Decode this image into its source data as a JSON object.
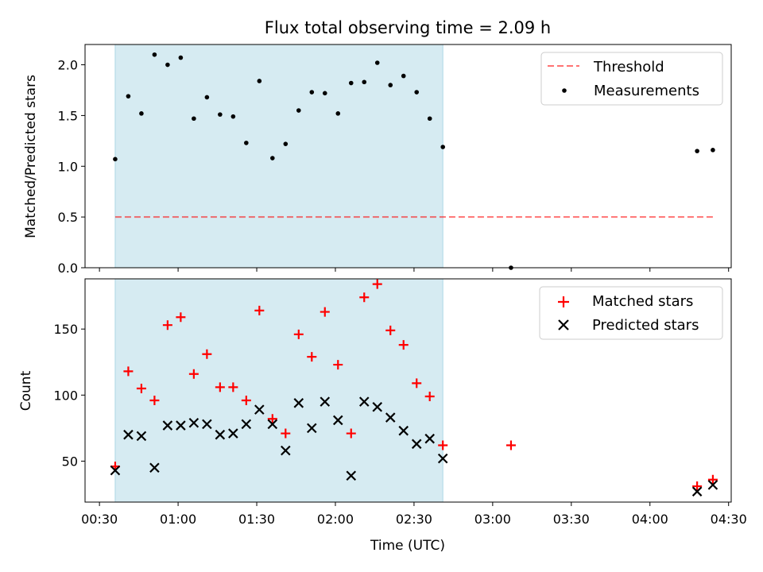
{
  "chart_data": [
    {
      "type": "scatter",
      "title": "Flux total observing time = 2.09 h",
      "ylabel": "Matched/Predicted stars",
      "xlabel": "",
      "ylim": [
        0,
        2.2
      ],
      "xlim": [
        24.5,
        271.0
      ],
      "yticks": [
        {
          "value": 0.0,
          "label": "0.0"
        },
        {
          "value": 0.5,
          "label": "0.5"
        },
        {
          "value": 1.0,
          "label": "1.0"
        },
        {
          "value": 1.5,
          "label": "1.5"
        },
        {
          "value": 2.0,
          "label": "2.0"
        }
      ],
      "shaded_region": {
        "x_start": 36,
        "x_end": 161,
        "color": "#add8e6"
      },
      "threshold": {
        "name": "Threshold",
        "value": 0.5,
        "x_start": 36,
        "x_end": 264,
        "color": "#ff0000"
      },
      "series": [
        {
          "name": "Measurements",
          "color": "#000000",
          "x": [
            36,
            41,
            46,
            51,
            56,
            61,
            66,
            71,
            76,
            81,
            86,
            91,
            96,
            101,
            106,
            111,
            116,
            121,
            126,
            131,
            136,
            141,
            146,
            151,
            156,
            161,
            187,
            258,
            264
          ],
          "y": [
            1.07,
            1.69,
            1.52,
            2.1,
            2.0,
            2.07,
            1.47,
            1.68,
            1.51,
            1.49,
            1.23,
            1.84,
            1.08,
            1.22,
            1.55,
            1.73,
            1.72,
            1.52,
            1.82,
            1.83,
            2.02,
            1.8,
            1.89,
            1.73,
            1.47,
            1.19,
            0.0,
            1.15,
            1.16
          ]
        }
      ],
      "legend": {
        "position": "top-right",
        "entries": [
          "Threshold",
          "Measurements"
        ]
      }
    },
    {
      "type": "scatter",
      "title": "",
      "ylabel": "Count",
      "xlabel": "Time (UTC)",
      "ylim": [
        19,
        188
      ],
      "xlim": [
        24.5,
        271.0
      ],
      "yticks": [
        {
          "value": 50,
          "label": "50"
        },
        {
          "value": 100,
          "label": "100"
        },
        {
          "value": 150,
          "label": "150"
        }
      ],
      "xticks": [
        {
          "value": 30,
          "label": "00:30"
        },
        {
          "value": 60,
          "label": "01:00"
        },
        {
          "value": 90,
          "label": "01:30"
        },
        {
          "value": 120,
          "label": "02:00"
        },
        {
          "value": 150,
          "label": "02:30"
        },
        {
          "value": 180,
          "label": "03:00"
        },
        {
          "value": 210,
          "label": "03:30"
        },
        {
          "value": 240,
          "label": "04:00"
        },
        {
          "value": 270,
          "label": "04:30"
        }
      ],
      "shaded_region": {
        "x_start": 36,
        "x_end": 161,
        "color": "#add8e6"
      },
      "series": [
        {
          "name": "Matched stars",
          "marker": "plus",
          "color": "#ff0000",
          "x": [
            36,
            41,
            46,
            51,
            56,
            61,
            66,
            71,
            76,
            81,
            86,
            91,
            96,
            101,
            106,
            111,
            116,
            121,
            126,
            131,
            136,
            141,
            146,
            151,
            156,
            161,
            187,
            258,
            264
          ],
          "y": [
            46,
            118,
            105,
            96,
            153,
            159,
            116,
            131,
            106,
            106,
            96,
            164,
            82,
            71,
            146,
            129,
            163,
            123,
            71,
            174,
            184,
            149,
            138,
            109,
            99,
            62,
            62,
            31,
            36
          ]
        },
        {
          "name": "Predicted stars",
          "marker": "x",
          "color": "#000000",
          "x": [
            36,
            41,
            46,
            51,
            56,
            61,
            66,
            71,
            76,
            81,
            86,
            91,
            96,
            101,
            106,
            111,
            116,
            121,
            126,
            131,
            136,
            141,
            146,
            151,
            156,
            161,
            258,
            264
          ],
          "y": [
            43,
            70,
            69,
            45,
            77,
            77,
            79,
            78,
            70,
            71,
            78,
            89,
            78,
            58,
            94,
            75,
            95,
            81,
            39,
            95,
            91,
            83,
            73,
            63,
            67,
            52,
            27,
            32
          ]
        }
      ],
      "legend": {
        "position": "top-right",
        "entries": [
          "Matched stars",
          "Predicted stars"
        ]
      }
    }
  ]
}
